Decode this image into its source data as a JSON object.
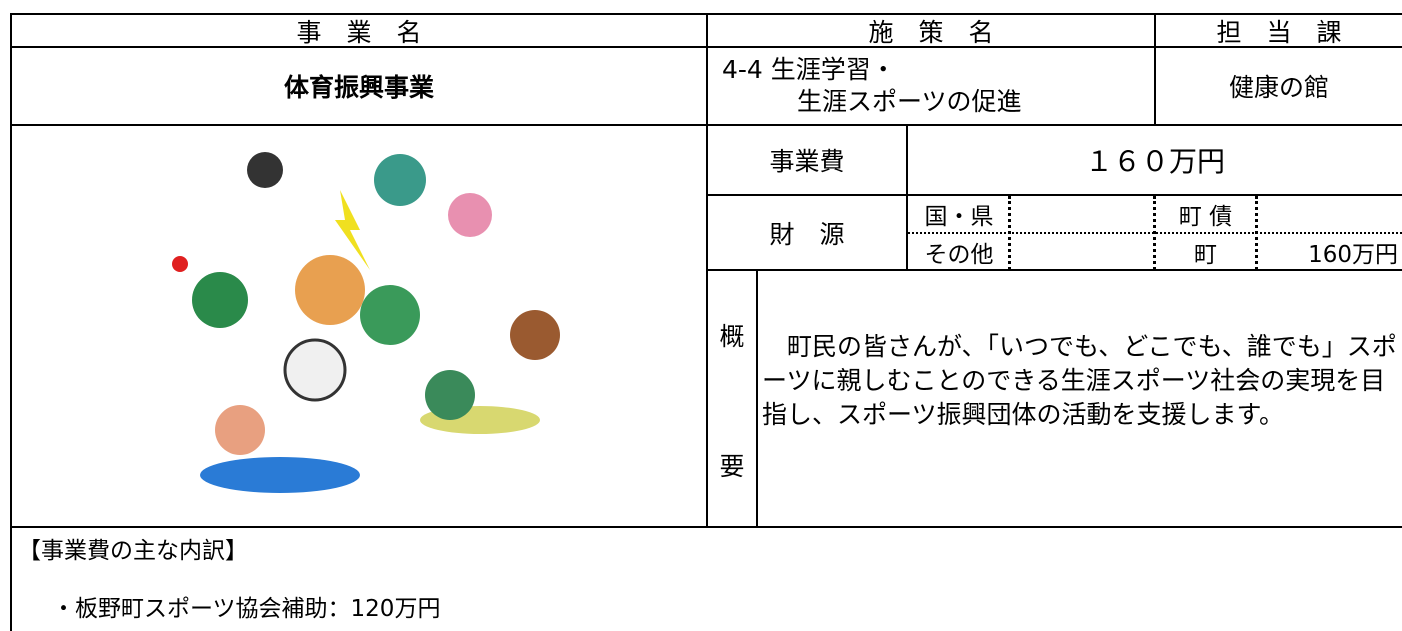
{
  "header": {
    "business_label": "事　業　名",
    "policy_label": "施　策　名",
    "department_label": "担　当　課"
  },
  "business_name": "体育振興事業",
  "policy_name": [
    "4-4 生涯学習・",
    "生涯スポーツの促進"
  ],
  "department": "健康の館",
  "cost": {
    "label": "事業費",
    "value": "１６０万円"
  },
  "funding": {
    "label": "財　源",
    "national_prefectural": "国・県",
    "town_bond": "町 債",
    "other": "その他",
    "town": "町",
    "town_amount": "160万円"
  },
  "summary": {
    "label": [
      "概",
      "要"
    ],
    "text": "　町民の皆さんが、「いつでも、どこでも、誰でも」スポーツに親しむことのできる生涯スポーツ社会の実現を目指し、スポーツ振興団体の活動を支援します。"
  },
  "breakdown": {
    "title": "【事業費の主な内訳】",
    "items": [
      "・板野町スポーツ協会補助：120万円"
    ]
  }
}
